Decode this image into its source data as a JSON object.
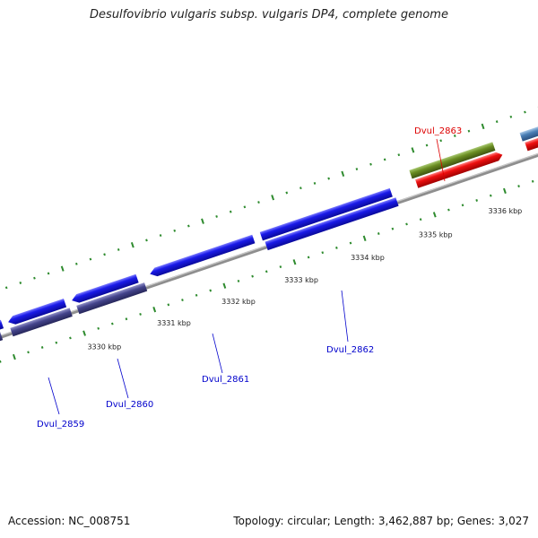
{
  "title": "Desulfovibrio vulgaris subsp. vulgaris DP4, complete genome",
  "footer": {
    "accession": "Accession: NC_008751",
    "summary": "Topology: circular; Length: 3,462,887 bp; Genes: 3,027"
  },
  "colors": {
    "forward_cds": "#1414e6",
    "reverse_cds": "#44448c",
    "rna_green": "#6b8e23",
    "rna_red": "#ee1010",
    "steel_blue": "#4a7fb5",
    "backbone": "#909090",
    "tick": "#2e8b2e",
    "label_blue": "#0000cc",
    "label_red": "#dd0000"
  },
  "scale_ticks": [
    {
      "label": "3330 kbp"
    },
    {
      "label": "3331 kbp"
    },
    {
      "label": "3332 kbp"
    },
    {
      "label": "3333 kbp"
    },
    {
      "label": "3334 kbp"
    },
    {
      "label": "3335 kbp"
    },
    {
      "label": "3336 kbp"
    }
  ],
  "gene_labels": [
    {
      "name": "Dvul_2859",
      "color": "blue"
    },
    {
      "name": "Dvul_2860",
      "color": "blue"
    },
    {
      "name": "Dvul_2861",
      "color": "blue"
    },
    {
      "name": "Dvul_2862",
      "color": "blue"
    },
    {
      "name": "Dvul_2863",
      "color": "red"
    }
  ]
}
